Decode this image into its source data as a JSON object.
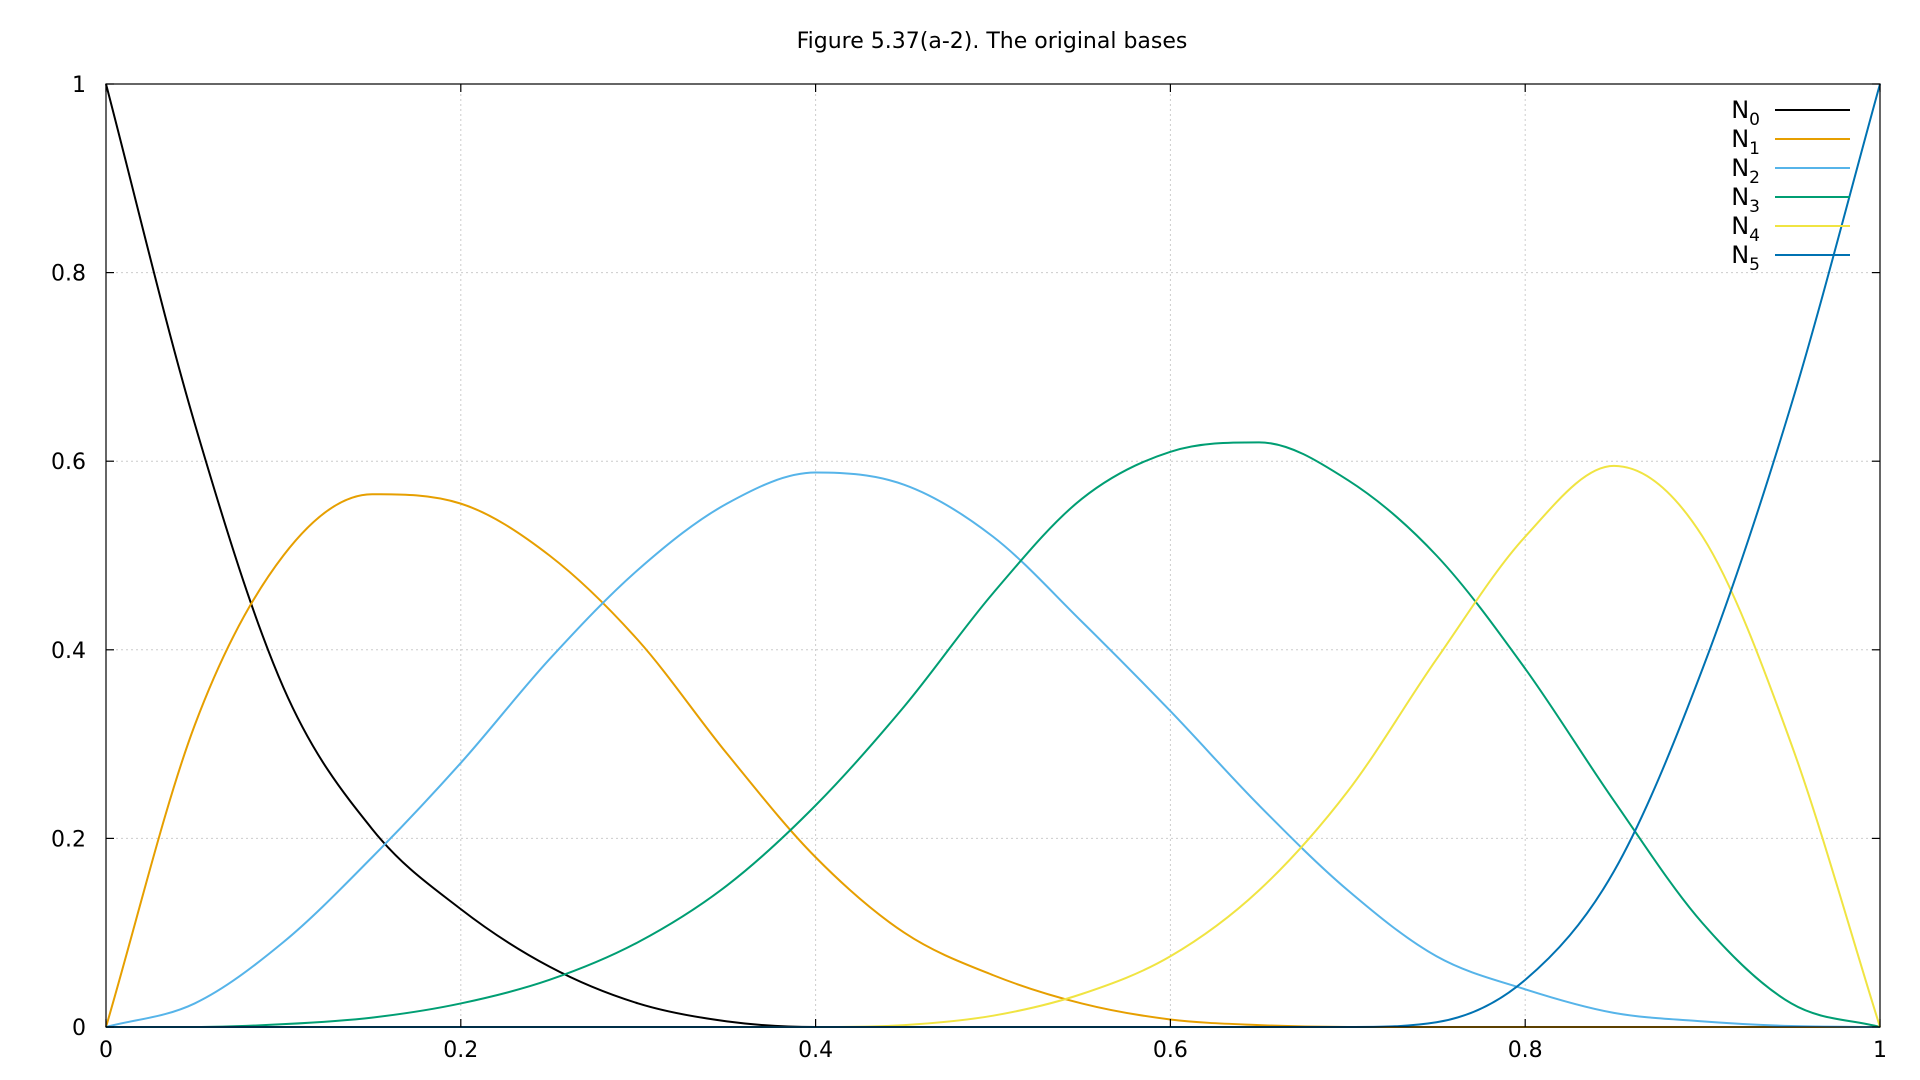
{
  "chart_data": {
    "type": "line",
    "title": "Figure 5.37(a-2). The original bases",
    "xlabel": "",
    "ylabel": "",
    "xlim": [
      0,
      1
    ],
    "ylim": [
      0,
      1
    ],
    "grid": true,
    "legend_position": "top-right",
    "x_ticks": [
      "0",
      "0.2",
      "0.4",
      "0.6",
      "0.8",
      "1"
    ],
    "y_ticks": [
      "0",
      "0.2",
      "0.4",
      "0.6",
      "0.8",
      "1"
    ],
    "x_tick_values": [
      0,
      0.2,
      0.4,
      0.6,
      0.8,
      1
    ],
    "y_tick_values": [
      0,
      0.2,
      0.4,
      0.6,
      0.8,
      1
    ],
    "x": [
      0,
      0.05,
      0.1,
      0.15,
      0.2,
      0.25,
      0.3,
      0.35,
      0.4,
      0.45,
      0.5,
      0.55,
      0.6,
      0.65,
      0.7,
      0.75,
      0.8,
      0.85,
      0.9,
      0.95,
      1
    ],
    "series": [
      {
        "name": "N",
        "subscript": "0",
        "color": "#000000",
        "values": [
          1,
          0.64,
          0.36,
          0.21,
          0.125,
          0.064,
          0.025,
          0.006,
          0,
          0,
          0,
          0,
          0,
          0,
          0,
          0,
          0,
          0,
          0,
          0,
          0
        ]
      },
      {
        "name": "N",
        "subscript": "1",
        "color": "#e69f00",
        "values": [
          0,
          0.32,
          0.5,
          0.565,
          0.555,
          0.5,
          0.41,
          0.29,
          0.18,
          0.1,
          0.055,
          0.025,
          0.008,
          0.002,
          0,
          0,
          0,
          0,
          0,
          0,
          0
        ]
      },
      {
        "name": "N",
        "subscript": "2",
        "color": "#56b4e9",
        "values": [
          0,
          0.025,
          0.09,
          0.18,
          0.28,
          0.39,
          0.485,
          0.555,
          0.588,
          0.575,
          0.52,
          0.43,
          0.335,
          0.235,
          0.145,
          0.075,
          0.04,
          0.015,
          0.006,
          0.001,
          0
        ]
      },
      {
        "name": "N",
        "subscript": "3",
        "color": "#009e73",
        "values": [
          0,
          0,
          0.003,
          0.01,
          0.025,
          0.05,
          0.09,
          0.15,
          0.235,
          0.34,
          0.46,
          0.56,
          0.61,
          0.62,
          0.58,
          0.5,
          0.38,
          0.24,
          0.11,
          0.025,
          0
        ]
      },
      {
        "name": "N",
        "subscript": "4",
        "color": "#f0e442",
        "values": [
          0,
          0,
          0,
          0,
          0,
          0,
          0,
          0,
          0,
          0.002,
          0.012,
          0.035,
          0.075,
          0.145,
          0.25,
          0.39,
          0.52,
          0.595,
          0.52,
          0.3,
          0
        ]
      },
      {
        "name": "N",
        "subscript": "5",
        "color": "#0072b2",
        "values": [
          0,
          0,
          0,
          0,
          0,
          0,
          0,
          0,
          0,
          0,
          0,
          0,
          0,
          0,
          0,
          0.005,
          0.05,
          0.165,
          0.38,
          0.66,
          1
        ]
      }
    ]
  }
}
